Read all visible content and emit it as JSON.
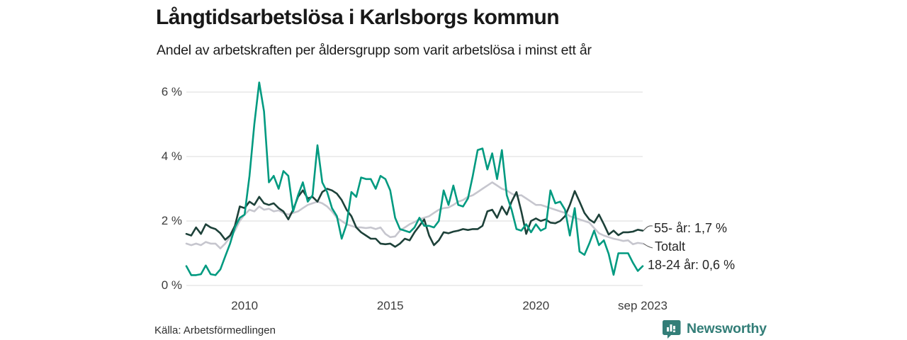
{
  "header": {
    "title": "Långtidsarbetslösa i Karlsborgs kommun",
    "subtitle": "Andel av arbetskraften per åldersgrupp som varit arbetslösa i minst ett år"
  },
  "chart_data": {
    "type": "line",
    "title": "Långtidsarbetslösa i Karlsborgs kommun",
    "subtitle": "Andel av arbetskraften per åldersgrupp som varit arbetslösa i minst ett år",
    "unit": "% av arbetskraften",
    "x_start": "2008-01",
    "x_end": "2023-09",
    "x_step_months": 2,
    "xlim": [
      2008.0,
      2023.6667
    ],
    "ylim": [
      0,
      6.55
    ],
    "grid": "horizontal",
    "legend_position": "right-end-labels",
    "y_ticks": [
      {
        "value": 0,
        "label": "0 %"
      },
      {
        "value": 2,
        "label": "2 %"
      },
      {
        "value": 4,
        "label": "4 %"
      },
      {
        "value": 6,
        "label": "6 %"
      }
    ],
    "x_ticks": [
      {
        "value": 2010.0,
        "label": "2010"
      },
      {
        "value": 2015.0,
        "label": "2015"
      },
      {
        "value": 2020.0,
        "label": "2020"
      },
      {
        "value": 2023.6667,
        "label": "sep 2023"
      }
    ],
    "series": [
      {
        "name": "55- år",
        "end_label": "55- år: 1,7 %",
        "end_value": "1,7 %",
        "color": "#1d4139",
        "values": [
          1.6,
          1.55,
          1.8,
          1.6,
          1.9,
          1.8,
          1.75,
          1.62,
          1.42,
          1.55,
          1.85,
          2.45,
          2.4,
          2.6,
          2.5,
          2.75,
          2.55,
          2.5,
          2.55,
          2.4,
          2.3,
          2.05,
          2.35,
          2.75,
          2.95,
          2.7,
          2.75,
          2.6,
          2.9,
          3.0,
          2.95,
          2.85,
          2.65,
          2.35,
          2.15,
          1.8,
          1.65,
          1.55,
          1.45,
          1.45,
          1.3,
          1.28,
          1.3,
          1.2,
          1.3,
          1.45,
          1.4,
          1.65,
          1.85,
          2.05,
          1.55,
          1.25,
          1.4,
          1.65,
          1.62,
          1.67,
          1.7,
          1.75,
          1.72,
          1.75,
          1.75,
          1.85,
          2.3,
          2.35,
          2.1,
          2.45,
          2.2,
          2.6,
          2.9,
          2.3,
          1.6,
          2.0,
          2.08,
          2.0,
          2.05,
          1.95,
          1.93,
          2.0,
          2.15,
          2.5,
          2.93,
          2.6,
          2.25,
          2.05,
          1.95,
          2.2,
          1.9,
          1.58,
          1.7,
          1.56,
          1.65,
          1.65,
          1.67,
          1.73,
          1.7
        ]
      },
      {
        "name": "Totalt",
        "end_label": "Totalt",
        "end_value": "1,3 %",
        "color": "#c6c6ce",
        "values": [
          1.3,
          1.25,
          1.3,
          1.25,
          1.35,
          1.3,
          1.3,
          1.15,
          1.3,
          1.5,
          1.7,
          2.0,
          2.2,
          2.35,
          2.3,
          2.45,
          2.35,
          2.38,
          2.3,
          2.33,
          2.25,
          2.2,
          2.25,
          2.3,
          2.4,
          2.5,
          2.55,
          2.6,
          2.55,
          2.45,
          2.3,
          2.1,
          2.0,
          1.9,
          1.85,
          1.8,
          1.8,
          1.78,
          1.8,
          1.75,
          1.8,
          1.6,
          1.5,
          1.52,
          1.7,
          1.8,
          1.9,
          1.97,
          2.05,
          2.1,
          2.15,
          2.25,
          2.35,
          2.4,
          2.42,
          2.5,
          2.6,
          2.65,
          2.75,
          2.8,
          2.9,
          3.0,
          3.1,
          3.2,
          3.1,
          3.0,
          2.95,
          2.85,
          2.78,
          2.8,
          2.7,
          2.6,
          2.5,
          2.5,
          2.45,
          2.4,
          2.35,
          2.3,
          2.25,
          2.15,
          2.1,
          2.05,
          2.0,
          1.95,
          1.78,
          1.62,
          1.55,
          1.5,
          1.45,
          1.42,
          1.38,
          1.4,
          1.28,
          1.32,
          1.3
        ]
      },
      {
        "name": "18-24 år",
        "end_label": "18-24 år: 0,6 %",
        "end_value": "0,6 %",
        "color": "#009a80",
        "values": [
          0.6,
          0.32,
          0.32,
          0.35,
          0.62,
          0.35,
          0.32,
          0.5,
          0.9,
          1.3,
          1.8,
          2.1,
          2.2,
          3.4,
          5.0,
          6.3,
          5.4,
          3.2,
          3.4,
          3.0,
          3.55,
          3.4,
          2.3,
          2.8,
          3.2,
          2.6,
          2.8,
          4.35,
          3.2,
          2.9,
          2.4,
          2.15,
          1.45,
          1.9,
          2.9,
          2.75,
          3.35,
          3.3,
          3.3,
          3.0,
          3.4,
          3.3,
          2.95,
          2.1,
          1.75,
          1.7,
          1.65,
          1.8,
          2.1,
          1.85,
          1.85,
          1.8,
          2.0,
          2.95,
          2.5,
          3.1,
          2.5,
          2.45,
          2.7,
          3.4,
          4.2,
          4.25,
          3.6,
          4.1,
          3.3,
          4.2,
          2.8,
          2.35,
          1.75,
          1.7,
          1.9,
          1.65,
          1.9,
          1.7,
          1.78,
          2.95,
          2.55,
          2.6,
          2.35,
          1.55,
          2.4,
          1.05,
          0.95,
          1.3,
          1.7,
          1.25,
          1.4,
          0.98,
          0.33,
          1.0,
          1.0,
          1.0,
          0.7,
          0.45,
          0.6
        ]
      }
    ]
  },
  "footer": {
    "source": "Källa: Arbetsförmedlingen",
    "brand": "Newsworthy"
  },
  "colors": {
    "background": "#ffffff",
    "gridline": "#e2e2e2",
    "axis_text": "#3d3d3d",
    "text": "#181818",
    "brand_teal": "#337e78",
    "series_55": "#1d4139",
    "series_total": "#c6c6ce",
    "series_1824": "#009a80"
  }
}
